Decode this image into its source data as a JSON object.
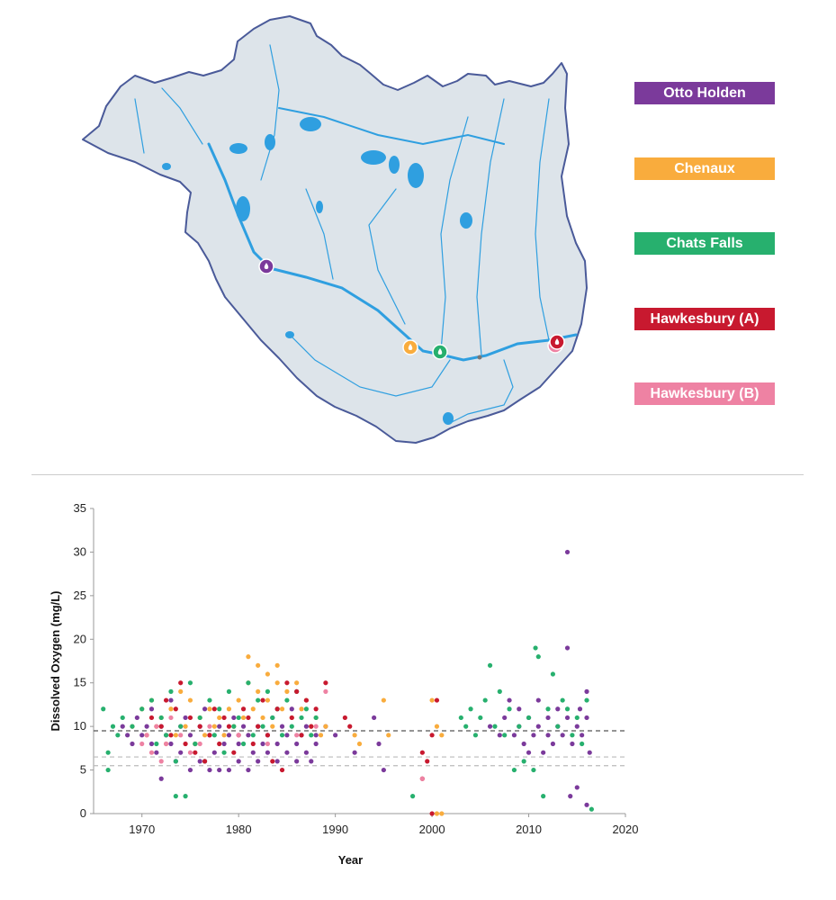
{
  "legend": {
    "items": [
      {
        "label": "Otto Holden",
        "color": "#7b3a9b"
      },
      {
        "label": "Chenaux",
        "color": "#f9ac3d"
      },
      {
        "label": "Chats Falls",
        "color": "#27b06e"
      },
      {
        "label": "Hawkesbury (A)",
        "color": "#c8192f"
      },
      {
        "label": "Hawkesbury (B)",
        "color": "#ee82a3"
      }
    ]
  },
  "map": {
    "basin_fill": "#dde4ea",
    "basin_outline": "#4a5a99",
    "river_color": "#2f9fe0"
  },
  "chart_data": {
    "type": "scatter",
    "title": "",
    "xlabel": "Year",
    "ylabel": "Dissolved Oxygen (mg/L)",
    "xlim": [
      1965,
      2020
    ],
    "ylim": [
      0,
      35
    ],
    "x_ticks": [
      "1970",
      "1980",
      "1990",
      "2000",
      "2010",
      "2020"
    ],
    "y_ticks": [
      "0",
      "5",
      "10",
      "15",
      "20",
      "25",
      "30",
      "35"
    ],
    "reference_lines": [
      {
        "y": 9.5,
        "style": "dashed",
        "color": "#555555"
      },
      {
        "y": 6.5,
        "style": "dashed",
        "color": "#bbbbbb"
      },
      {
        "y": 5.5,
        "style": "dashed",
        "color": "#bbbbbb"
      }
    ],
    "series": [
      {
        "name": "Otto Holden",
        "color": "#7b3a9b",
        "points": [
          [
            1968,
            10
          ],
          [
            1968.5,
            9
          ],
          [
            1969,
            8
          ],
          [
            1969.5,
            11
          ],
          [
            1970,
            9
          ],
          [
            1970.5,
            10
          ],
          [
            1971,
            12
          ],
          [
            1971,
            8
          ],
          [
            1971.5,
            7
          ],
          [
            1972,
            10
          ],
          [
            1972,
            4
          ],
          [
            1972.5,
            9
          ],
          [
            1973,
            8
          ],
          [
            1973,
            13
          ],
          [
            1973.5,
            6
          ],
          [
            1974,
            10
          ],
          [
            1974,
            7
          ],
          [
            1974.5,
            11
          ],
          [
            1975,
            9
          ],
          [
            1975,
            5
          ],
          [
            1975.5,
            8
          ],
          [
            1976,
            10
          ],
          [
            1976,
            6
          ],
          [
            1976.5,
            12
          ],
          [
            1977,
            9
          ],
          [
            1977,
            5
          ],
          [
            1977.5,
            7
          ],
          [
            1978,
            10
          ],
          [
            1978,
            5
          ],
          [
            1978.5,
            8
          ],
          [
            1979,
            9
          ],
          [
            1979,
            5
          ],
          [
            1979.5,
            11
          ],
          [
            1980,
            8
          ],
          [
            1980,
            6
          ],
          [
            1980.5,
            10
          ],
          [
            1981,
            9
          ],
          [
            1981,
            5
          ],
          [
            1981.5,
            7
          ],
          [
            1982,
            10
          ],
          [
            1982,
            6
          ],
          [
            1982.5,
            8
          ],
          [
            1983,
            9
          ],
          [
            1983,
            7
          ],
          [
            1983.5,
            11
          ],
          [
            1984,
            8
          ],
          [
            1984,
            6
          ],
          [
            1984.5,
            10
          ],
          [
            1985,
            9
          ],
          [
            1985,
            7
          ],
          [
            1985.5,
            12
          ],
          [
            1986,
            8
          ],
          [
            1986,
            6
          ],
          [
            1986.5,
            9
          ],
          [
            1987,
            10
          ],
          [
            1987,
            7
          ],
          [
            1987.5,
            6
          ],
          [
            1988,
            8
          ],
          [
            1988,
            9
          ],
          [
            1989,
            10
          ],
          [
            1990,
            9
          ],
          [
            1992,
            7
          ],
          [
            1994,
            11
          ],
          [
            1994.5,
            8
          ],
          [
            1995,
            5
          ],
          [
            2006,
            10
          ],
          [
            2007,
            9
          ],
          [
            2007.5,
            11
          ],
          [
            2008,
            13
          ],
          [
            2008.5,
            9
          ],
          [
            2009,
            10
          ],
          [
            2009,
            12
          ],
          [
            2009.5,
            8
          ],
          [
            2010,
            11
          ],
          [
            2010,
            7
          ],
          [
            2010.5,
            9
          ],
          [
            2011,
            10
          ],
          [
            2011,
            13
          ],
          [
            2011.5,
            7
          ],
          [
            2012,
            9
          ],
          [
            2012,
            11
          ],
          [
            2012.5,
            8
          ],
          [
            2013,
            10
          ],
          [
            2013,
            12
          ],
          [
            2013.5,
            9
          ],
          [
            2014,
            11
          ],
          [
            2014,
            30
          ],
          [
            2014,
            19
          ],
          [
            2014.3,
            2
          ],
          [
            2014.5,
            8
          ],
          [
            2015,
            10
          ],
          [
            2015,
            3
          ],
          [
            2015.3,
            12
          ],
          [
            2015.5,
            9
          ],
          [
            2016,
            11
          ],
          [
            2016,
            14
          ],
          [
            2016,
            1
          ],
          [
            2016.3,
            7
          ]
        ]
      },
      {
        "name": "Chenaux",
        "color": "#f9ac3d",
        "points": [
          [
            1969,
            10
          ],
          [
            1970,
            12
          ],
          [
            1970.5,
            9
          ],
          [
            1971,
            13
          ],
          [
            1971.5,
            10
          ],
          [
            1972,
            11
          ],
          [
            1972.5,
            8
          ],
          [
            1973,
            12
          ],
          [
            1973.5,
            9
          ],
          [
            1974,
            14
          ],
          [
            1974.5,
            10
          ],
          [
            1975,
            13
          ],
          [
            1975.5,
            8
          ],
          [
            1976,
            11
          ],
          [
            1976.5,
            9
          ],
          [
            1977,
            12
          ],
          [
            1977.5,
            10
          ],
          [
            1978,
            11
          ],
          [
            1978.5,
            9
          ],
          [
            1979,
            12
          ],
          [
            1979.5,
            10
          ],
          [
            1980,
            13
          ],
          [
            1980.5,
            11
          ],
          [
            1981,
            18
          ],
          [
            1981,
            15
          ],
          [
            1981.5,
            12
          ],
          [
            1982,
            17
          ],
          [
            1982,
            14
          ],
          [
            1982.5,
            11
          ],
          [
            1983,
            16
          ],
          [
            1983,
            13
          ],
          [
            1983.5,
            10
          ],
          [
            1984,
            17
          ],
          [
            1984,
            15
          ],
          [
            1984.5,
            12
          ],
          [
            1985,
            14
          ],
          [
            1985.5,
            11
          ],
          [
            1986,
            15
          ],
          [
            1986.5,
            12
          ],
          [
            1987,
            13
          ],
          [
            1987.5,
            10
          ],
          [
            1988,
            11
          ],
          [
            1988.5,
            9
          ],
          [
            1989,
            10
          ],
          [
            1992,
            9
          ],
          [
            1992.5,
            8
          ],
          [
            1995,
            13
          ],
          [
            1995.5,
            9
          ],
          [
            2000,
            13
          ],
          [
            2000.5,
            10
          ],
          [
            2001,
            9
          ],
          [
            2001,
            0
          ],
          [
            2000.5,
            0
          ]
        ]
      },
      {
        "name": "Chats Falls",
        "color": "#27b06e",
        "points": [
          [
            1966,
            12
          ],
          [
            1966.5,
            7
          ],
          [
            1966.5,
            5
          ],
          [
            1967,
            10
          ],
          [
            1967.5,
            9
          ],
          [
            1968,
            11
          ],
          [
            1969,
            10
          ],
          [
            1970,
            12
          ],
          [
            1971,
            13
          ],
          [
            1971.5,
            8
          ],
          [
            1972,
            11
          ],
          [
            1972.5,
            9
          ],
          [
            1973,
            14
          ],
          [
            1973.5,
            6
          ],
          [
            1973.5,
            2
          ],
          [
            1974,
            10
          ],
          [
            1974.5,
            2
          ],
          [
            1975,
            15
          ],
          [
            1975.5,
            8
          ],
          [
            1976,
            11
          ],
          [
            1976.5,
            6
          ],
          [
            1977,
            13
          ],
          [
            1977.5,
            9
          ],
          [
            1978,
            12
          ],
          [
            1978.5,
            7
          ],
          [
            1979,
            14
          ],
          [
            1979.5,
            10
          ],
          [
            1980,
            11
          ],
          [
            1980.5,
            8
          ],
          [
            1981,
            15
          ],
          [
            1981.5,
            9
          ],
          [
            1982,
            13
          ],
          [
            1982.5,
            10
          ],
          [
            1983,
            14
          ],
          [
            1983.5,
            11
          ],
          [
            1984,
            12
          ],
          [
            1984.5,
            9
          ],
          [
            1985,
            13
          ],
          [
            1985.5,
            10
          ],
          [
            1986,
            14
          ],
          [
            1986.5,
            11
          ],
          [
            1987,
            12
          ],
          [
            1987.5,
            9
          ],
          [
            1988,
            11
          ],
          [
            1998,
            2
          ],
          [
            2003,
            11
          ],
          [
            2003.5,
            10
          ],
          [
            2004,
            12
          ],
          [
            2004.5,
            9
          ],
          [
            2005,
            11
          ],
          [
            2005.5,
            13
          ],
          [
            2006,
            17
          ],
          [
            2006.5,
            10
          ],
          [
            2007,
            14
          ],
          [
            2007.5,
            9
          ],
          [
            2008,
            12
          ],
          [
            2008.5,
            5
          ],
          [
            2009,
            10
          ],
          [
            2009.5,
            6
          ],
          [
            2010,
            11
          ],
          [
            2010.5,
            5
          ],
          [
            2010.7,
            19
          ],
          [
            2011,
            18
          ],
          [
            2011.5,
            2
          ],
          [
            2012,
            12
          ],
          [
            2012.5,
            16
          ],
          [
            2013,
            10
          ],
          [
            2013.5,
            13
          ],
          [
            2014,
            12
          ],
          [
            2014.5,
            9
          ],
          [
            2015,
            11
          ],
          [
            2015.5,
            8
          ],
          [
            2016,
            13
          ],
          [
            2016.5,
            0.5
          ]
        ]
      },
      {
        "name": "Hawkesbury (A)",
        "color": "#c8192f",
        "points": [
          [
            1971,
            11
          ],
          [
            1972,
            10
          ],
          [
            1972.5,
            13
          ],
          [
            1973,
            9
          ],
          [
            1973.5,
            12
          ],
          [
            1974,
            15
          ],
          [
            1974.5,
            8
          ],
          [
            1975,
            11
          ],
          [
            1975.5,
            7
          ],
          [
            1976,
            10
          ],
          [
            1976.5,
            6
          ],
          [
            1977,
            9
          ],
          [
            1977.5,
            12
          ],
          [
            1978,
            8
          ],
          [
            1978.5,
            11
          ],
          [
            1979,
            10
          ],
          [
            1979.5,
            7
          ],
          [
            1980,
            9
          ],
          [
            1980.5,
            12
          ],
          [
            1981,
            11
          ],
          [
            1981.5,
            8
          ],
          [
            1982,
            10
          ],
          [
            1982.5,
            13
          ],
          [
            1983,
            9
          ],
          [
            1983.5,
            6
          ],
          [
            1984,
            12
          ],
          [
            1984.5,
            5
          ],
          [
            1985,
            15
          ],
          [
            1985.5,
            11
          ],
          [
            1986,
            14
          ],
          [
            1986.5,
            9
          ],
          [
            1987,
            13
          ],
          [
            1987.5,
            10
          ],
          [
            1988,
            12
          ],
          [
            1989,
            15
          ],
          [
            1991,
            11
          ],
          [
            1991.5,
            10
          ],
          [
            1999,
            7
          ],
          [
            1999,
            4
          ],
          [
            1999.5,
            6
          ],
          [
            2000,
            9
          ],
          [
            2000,
            0
          ],
          [
            2000.5,
            13
          ]
        ]
      },
      {
        "name": "Hawkesbury (B)",
        "color": "#ee82a3",
        "points": [
          [
            1970,
            8
          ],
          [
            1970.5,
            9
          ],
          [
            1971,
            7
          ],
          [
            1971.5,
            10
          ],
          [
            1972,
            6
          ],
          [
            1972.5,
            8
          ],
          [
            1973,
            11
          ],
          [
            1974,
            9
          ],
          [
            1975,
            7
          ],
          [
            1976,
            8
          ],
          [
            1977,
            10
          ],
          [
            1980,
            9
          ],
          [
            1983,
            8
          ],
          [
            1986,
            9
          ],
          [
            1988,
            10
          ],
          [
            1989,
            14
          ],
          [
            1999,
            4
          ]
        ]
      }
    ]
  }
}
